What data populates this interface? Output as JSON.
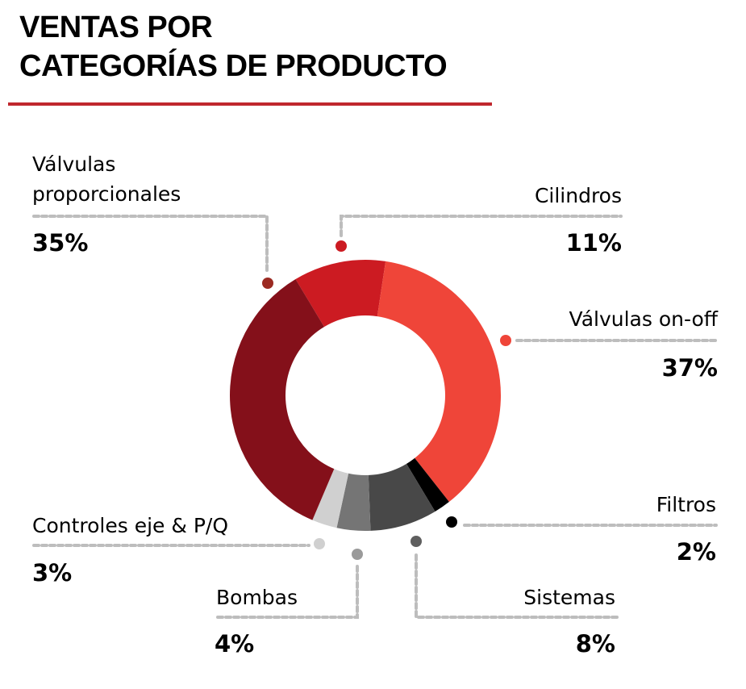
{
  "title": {
    "line1": "VENTAS POR",
    "line2": "CATEGORÍAS DE PRODUCTO",
    "rule_color": "#c0282e"
  },
  "chart_data": {
    "type": "pie",
    "variant": "donut",
    "title": "VENTAS POR CATEGORÍAS DE PRODUCTO",
    "unit": "%",
    "slices": [
      {
        "key": "cilindros",
        "label": "Cilindros",
        "value": 11,
        "value_label": "11%",
        "color": "#cc1b22"
      },
      {
        "key": "onoff",
        "label": "Válvulas on-off",
        "value": 37,
        "value_label": "37%",
        "color": "#ef4539"
      },
      {
        "key": "filtros",
        "label": "Filtros",
        "value": 2,
        "value_label": "2%",
        "color": "#000000"
      },
      {
        "key": "sistemas",
        "label": "Sistemas",
        "value": 8,
        "value_label": "8%",
        "color": "#484848"
      },
      {
        "key": "bombas",
        "label": "Bombas",
        "value": 4,
        "value_label": "4%",
        "color": "#757575"
      },
      {
        "key": "controles",
        "label": "Controles eje & P/Q",
        "value": 3,
        "value_label": "3%",
        "color": "#d0d0d0"
      },
      {
        "key": "proporcionales",
        "label": "Válvulas proporcionales",
        "label_lines": [
          "Válvulas",
          "proporcionales"
        ],
        "value": 35,
        "value_label": "35%",
        "color": "#84101a"
      }
    ],
    "dot_colors": {
      "cilindros": "#cc1b22",
      "onoff": "#ef4539",
      "filtros": "#000000",
      "sistemas": "#5f5f5f",
      "bombas": "#9a9a9a",
      "controles": "#d0d0d0",
      "proporcionales": "#9b2a22"
    },
    "leader_color": "#bdbdbd",
    "legend": "callouts"
  }
}
